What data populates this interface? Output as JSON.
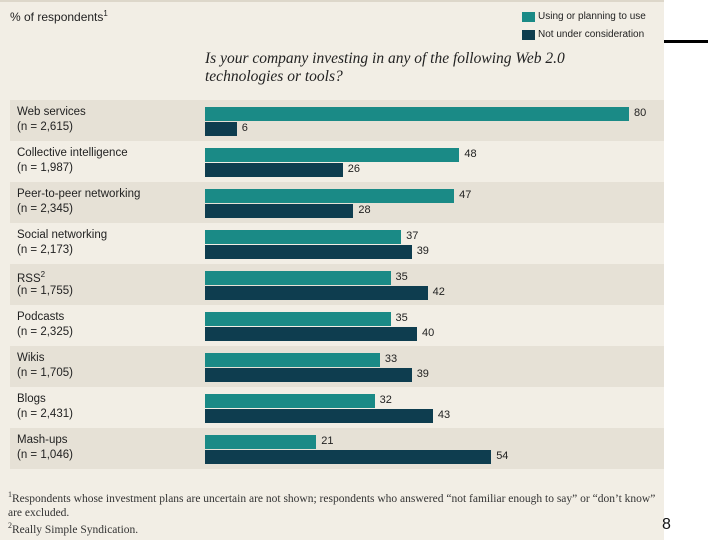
{
  "header": {
    "percent_label": "% of respondents",
    "percent_label_sup": "1",
    "question": "Is your company investing in any of the following Web 2.0 technologies or tools?"
  },
  "legend": {
    "using_label": "Using or planning to use",
    "not_label": "Not under consideration"
  },
  "colors": {
    "using": "#1a8a86",
    "not": "#0e3d4f",
    "panel": "#f2eee5"
  },
  "chart_data": {
    "type": "bar",
    "orientation": "horizontal",
    "title": "Is your company investing in any of the following Web 2.0 technologies or tools?",
    "ylabel": "% of respondents",
    "categories": [
      "Web services",
      "Collective intelligence",
      "Peer-to-peer networking",
      "Social networking",
      "RSS",
      "Podcasts",
      "Wikis",
      "Blogs",
      "Mash-ups"
    ],
    "category_sup": [
      "",
      "",
      "",
      "",
      "2",
      "",
      "",
      "",
      ""
    ],
    "sample_sizes": [
      "(n = 2,615)",
      "(n = 1,987)",
      "(n = 2,345)",
      "(n = 2,173)",
      "(n = 1,755)",
      "(n = 2,325)",
      "(n = 1,705)",
      "(n = 2,431)",
      "(n = 1,046)"
    ],
    "series": [
      {
        "name": "Using or planning to use",
        "values": [
          80,
          48,
          47,
          37,
          35,
          35,
          33,
          32,
          21
        ]
      },
      {
        "name": "Not under consideration",
        "values": [
          6,
          26,
          28,
          39,
          42,
          40,
          39,
          43,
          54
        ]
      }
    ],
    "xlim": [
      0,
      100
    ]
  },
  "footnotes": {
    "note1_sup": "1",
    "note1": "Respondents whose investment plans are uncertain are not shown; respondents who answered “not familiar enough to say” or “don’t know” are excluded.",
    "note2_sup": "2",
    "note2": "Really Simple Syndication."
  },
  "page_number": "8"
}
